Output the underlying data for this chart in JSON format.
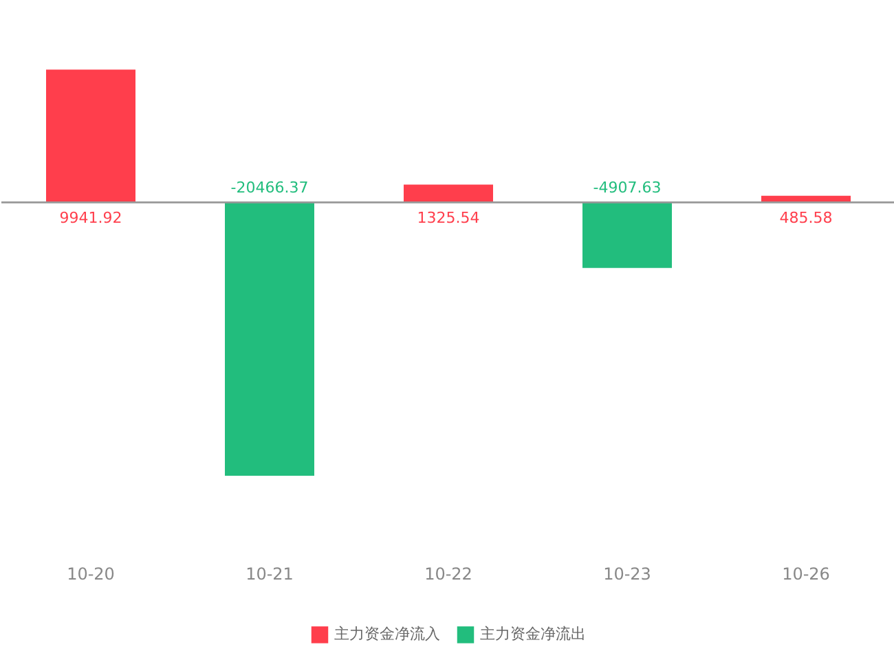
{
  "chart_data": {
    "type": "bar",
    "categories": [
      "10-20",
      "10-21",
      "10-22",
      "10-23",
      "10-26"
    ],
    "series": [
      {
        "name": "主力资金净流入",
        "color": "#ff3e4c",
        "values": [
          9941.92,
          null,
          1325.54,
          null,
          485.58
        ]
      },
      {
        "name": "主力资金净流出",
        "color": "#22bd7d",
        "values": [
          null,
          -20466.37,
          null,
          -4907.63,
          null
        ]
      }
    ],
    "data_labels": true,
    "legend": "bottom",
    "grid": false
  }
}
